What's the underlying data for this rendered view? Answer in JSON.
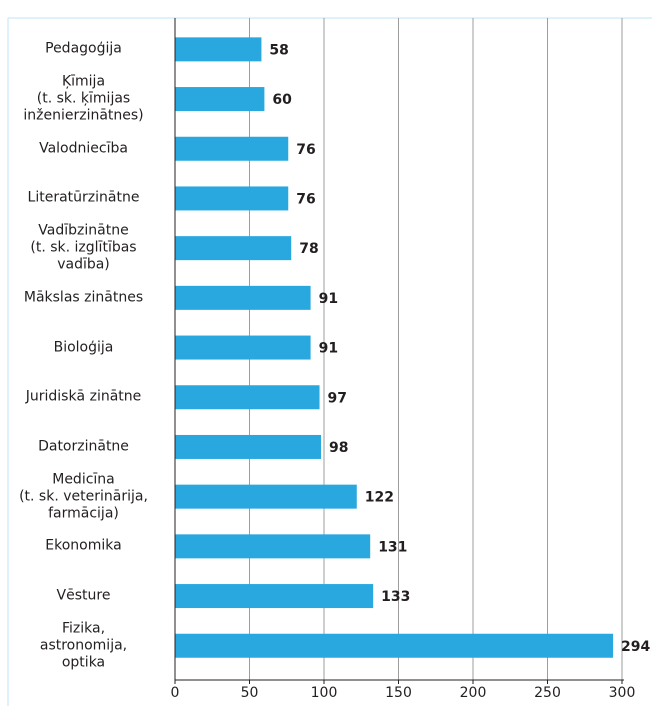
{
  "chart_data": {
    "type": "bar",
    "orientation": "horizontal",
    "categories": [
      "Pedagoģija",
      "Ķīmija\n(t. sk. ķīmijas\ninženierzinātnes)",
      "Valodniecība",
      "Literatūrzinātne",
      "Vadībzinātne\n(t. sk. izglītības\nvadība)",
      "Mākslas zinātnes",
      "Bioloģija",
      "Juridiskā zinātne",
      "Datorzinātne",
      "Medicīna\n(t. sk. veterinārija,\nfarmācija)",
      "Ekonomika",
      "Vēsture",
      "Fizika,\nastronomija,\noptika"
    ],
    "values": [
      58,
      60,
      76,
      76,
      78,
      91,
      91,
      97,
      98,
      122,
      131,
      133,
      294
    ],
    "color": "#29a8e0",
    "xlim": [
      0,
      300
    ],
    "xticks": [
      0,
      50,
      100,
      150,
      200,
      250,
      300
    ],
    "grid": true
  }
}
